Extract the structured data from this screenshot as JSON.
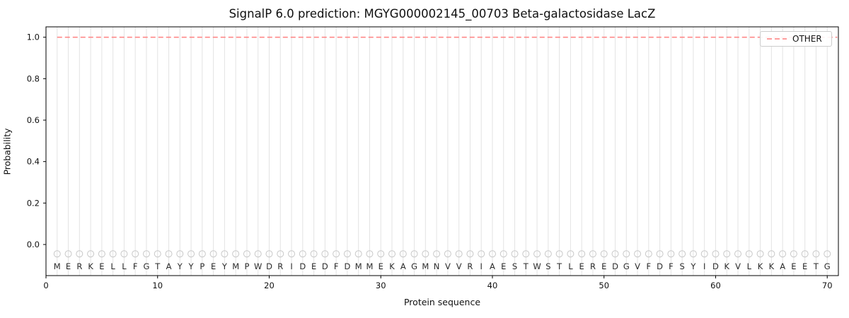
{
  "figure": {
    "title": "SignalP 6.0 prediction: MGYG000002145_00703 Beta-galactosidase LacZ",
    "xlabel": "Protein sequence",
    "ylabel": "Probability"
  },
  "legend": {
    "entries": [
      {
        "label": "OTHER",
        "color": "#ff7d7d",
        "style": "dashed"
      }
    ],
    "position": "upper right"
  },
  "chart_data": {
    "type": "line",
    "title": "SignalP 6.0 prediction: MGYG000002145_00703 Beta-galactosidase LacZ",
    "xlabel": "Protein sequence",
    "ylabel": "Probability",
    "xlim": [
      0,
      71
    ],
    "ylim": [
      -0.15,
      1.05
    ],
    "xticks": [
      0,
      10,
      20,
      30,
      40,
      50,
      60,
      70
    ],
    "yticks": [
      0.0,
      0.2,
      0.4,
      0.6,
      0.8,
      1.0
    ],
    "grid": "vertical line at every residue position",
    "legend_position": "upper right",
    "series": [
      {
        "name": "OTHER",
        "style": "dashed",
        "color": "#ff7d7d",
        "y_constant": 1.0,
        "x_start": 1,
        "x_end": 70.9
      }
    ],
    "sequence": "MERKELLFGTAYYPEYMPWDRIDEDFDMMEKAGMNVVRIAESTWSTLEREDGVFDFSYIDKVLKKAEETG",
    "sequence_positions": [
      1,
      70
    ],
    "marker_row": {
      "y": -0.045,
      "shape": "open-circle",
      "color": "#c8c8c8"
    },
    "letter_row_y": -0.105
  },
  "colors": {
    "other_line": "#ff7d7d",
    "gridline": "#e3e3e3",
    "axis_frame": "#000000",
    "tick_label": "#111111",
    "sequence_letter": "#2b2b2b",
    "marker_circle": "#c8c8c8",
    "background": "#ffffff"
  }
}
